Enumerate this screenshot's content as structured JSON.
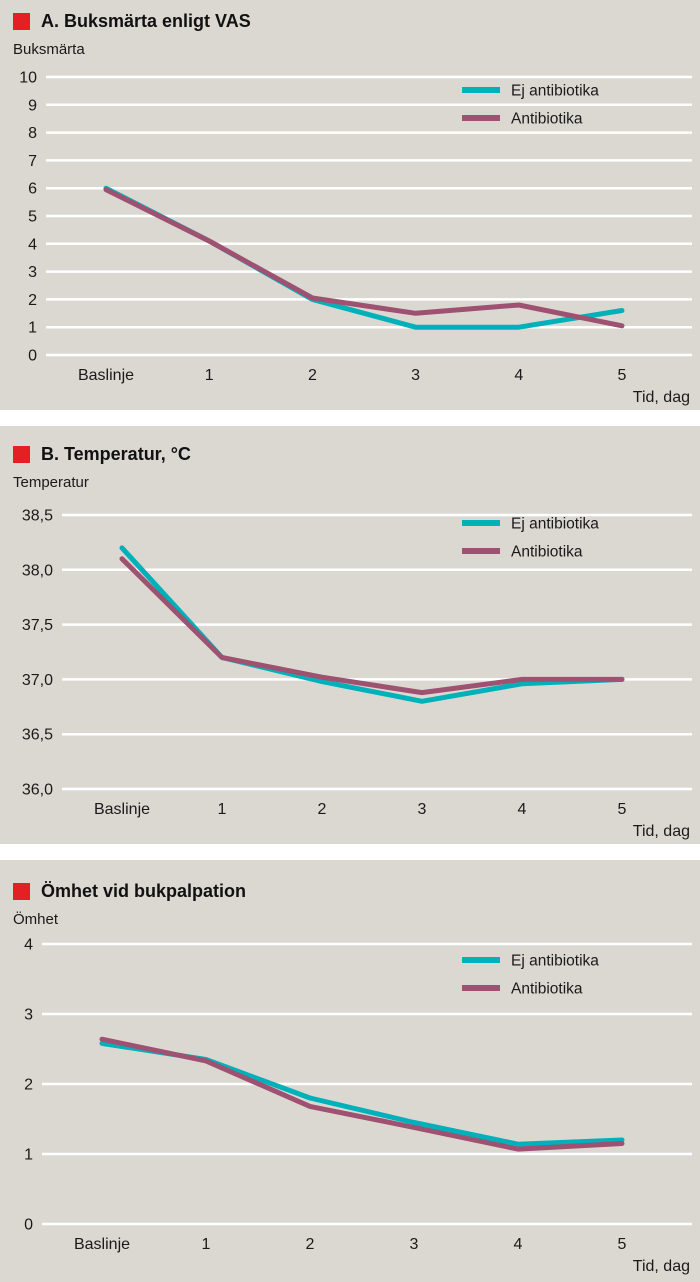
{
  "colors": {
    "panel_background": "#dbd8d2",
    "red_square": "#e32026",
    "gridline": "#ffffff",
    "teal": "#00b1ba",
    "plum": "#9e5170",
    "text": "#1a1a1a"
  },
  "chart_data": [
    {
      "type": "line",
      "title": "A. Buksmärta enligt VAS",
      "ylabel": "Buksmärta",
      "xlabel": "Tid, dag",
      "categories": [
        "Baslinje",
        "1",
        "2",
        "3",
        "4",
        "5"
      ],
      "ylim": [
        0,
        10
      ],
      "ytick_values": [
        0,
        1,
        2,
        3,
        4,
        5,
        6,
        7,
        8,
        9,
        10
      ],
      "ytick_labels": [
        "0",
        "1",
        "2",
        "3",
        "4",
        "5",
        "6",
        "7",
        "8",
        "9",
        "10"
      ],
      "grid": true,
      "legend_position": "top-right",
      "series": [
        {
          "name": "Ej antibiotika",
          "color": "#00b1ba",
          "values": [
            6.0,
            4.1,
            2.0,
            1.0,
            1.0,
            1.6
          ]
        },
        {
          "name": "Antibiotika",
          "color": "#9e5170",
          "values": [
            5.95,
            4.1,
            2.05,
            1.5,
            1.8,
            1.05
          ]
        }
      ]
    },
    {
      "type": "line",
      "title": "B. Temperatur, °C",
      "ylabel": "Temperatur",
      "xlabel": "Tid, dag",
      "categories": [
        "Baslinje",
        "1",
        "2",
        "3",
        "4",
        "5"
      ],
      "ylim": [
        36.0,
        38.5
      ],
      "ytick_values": [
        36.0,
        36.5,
        37.0,
        37.5,
        38.0,
        38.5
      ],
      "ytick_labels": [
        "36,0",
        "36,5",
        "37,0",
        "37,5",
        "38,0",
        "38,5"
      ],
      "grid": true,
      "legend_position": "top-right",
      "series": [
        {
          "name": "Ej antibiotika",
          "color": "#00b1ba",
          "values": [
            38.2,
            37.2,
            36.98,
            36.8,
            36.96,
            37.0
          ]
        },
        {
          "name": "Antibiotika",
          "color": "#9e5170",
          "values": [
            38.1,
            37.2,
            37.02,
            36.88,
            37.0,
            37.0
          ]
        }
      ]
    },
    {
      "type": "line",
      "title": "Ömhet vid bukpalpation",
      "ylabel": "Ömhet",
      "xlabel": "Tid, dag",
      "categories": [
        "Baslinje",
        "1",
        "2",
        "3",
        "4",
        "5"
      ],
      "ylim": [
        0,
        4
      ],
      "ytick_values": [
        0,
        1,
        2,
        3,
        4
      ],
      "ytick_labels": [
        "0",
        "1",
        "2",
        "3",
        "4"
      ],
      "grid": true,
      "legend_position": "top-right",
      "series": [
        {
          "name": "Ej antibiotika",
          "color": "#00b1ba",
          "values": [
            2.58,
            2.35,
            1.8,
            1.45,
            1.14,
            1.2
          ]
        },
        {
          "name": "Antibiotika",
          "color": "#9e5170",
          "values": [
            2.64,
            2.33,
            1.68,
            1.38,
            1.07,
            1.15
          ]
        }
      ]
    }
  ]
}
